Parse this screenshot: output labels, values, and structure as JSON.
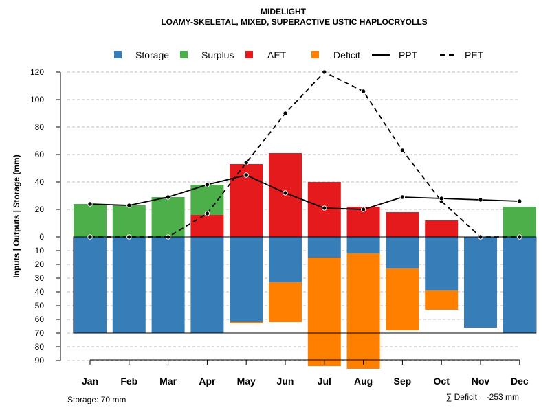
{
  "chart_data": {
    "type": "bar",
    "title": "MIDELIGHT",
    "subtitle": "LOAMY-SKELETAL, MIXED, SUPERACTIVE USTIC HAPLOCRYOLLS",
    "ylabel": "Inputs | Outputs | Storage    (mm)",
    "categories": [
      "Jan",
      "Feb",
      "Mar",
      "Apr",
      "May",
      "Jun",
      "Jul",
      "Aug",
      "Sep",
      "Oct",
      "Nov",
      "Dec"
    ],
    "y_upper_ticks": [
      "0",
      "20",
      "40",
      "60",
      "80",
      "100",
      "120"
    ],
    "y_lower_ticks": [
      "10",
      "20",
      "30",
      "40",
      "50",
      "60",
      "70",
      "80",
      "90"
    ],
    "ylim_upper": [
      0,
      120
    ],
    "ylim_lower": [
      0,
      90
    ],
    "storage_capacity": 70,
    "legend": [
      {
        "key": "storage",
        "label": "Storage",
        "color": "#377EB8",
        "kind": "box"
      },
      {
        "key": "surplus",
        "label": "Surplus",
        "color": "#4DAF4A",
        "kind": "box"
      },
      {
        "key": "aet",
        "label": "AET",
        "color": "#E41A1C",
        "kind": "box"
      },
      {
        "key": "deficit",
        "label": "Deficit",
        "color": "#FF7F00",
        "kind": "box"
      },
      {
        "key": "ppt",
        "label": "PPT",
        "color": "#000000",
        "kind": "solid"
      },
      {
        "key": "pet",
        "label": "PET",
        "color": "#000000",
        "kind": "dashed"
      }
    ],
    "series": [
      {
        "name": "Surplus",
        "values": [
          24,
          23,
          29,
          22,
          0,
          0,
          0,
          0,
          0,
          0,
          0,
          22
        ]
      },
      {
        "name": "AET",
        "values": [
          0,
          0,
          0,
          16,
          53,
          61,
          40,
          22,
          18,
          12,
          0,
          0
        ]
      },
      {
        "name": "Storage",
        "values": [
          70,
          70,
          70,
          70,
          62,
          33,
          15,
          12,
          23,
          39,
          66,
          70
        ]
      },
      {
        "name": "Deficit",
        "values": [
          0,
          0,
          0,
          0,
          1,
          29,
          79,
          84,
          45,
          14,
          0,
          0
        ]
      },
      {
        "name": "PPT",
        "values": [
          24,
          23,
          29,
          38,
          45,
          32,
          21,
          20,
          29,
          28,
          27,
          26
        ]
      },
      {
        "name": "PET",
        "values": [
          0,
          0,
          0,
          17,
          54,
          90,
          120,
          106,
          63,
          26,
          0,
          0
        ]
      }
    ],
    "footer_left": "Storage: 70 mm",
    "footer_right": "∑ Deficit = -253 mm"
  }
}
